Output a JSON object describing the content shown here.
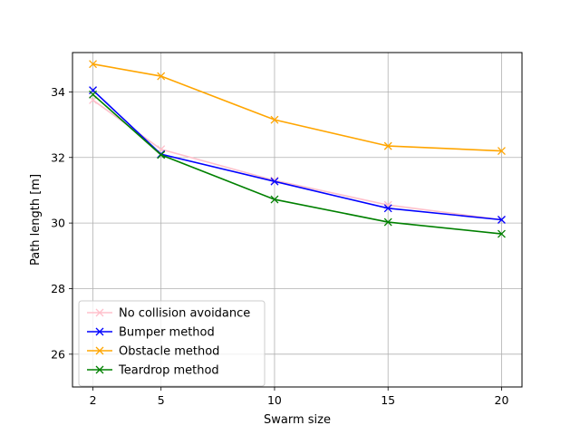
{
  "chart_data": {
    "type": "line",
    "title": "",
    "xlabel": "Swarm size",
    "ylabel": "Path length [m]",
    "x": [
      2,
      5,
      10,
      15,
      20
    ],
    "xticks": [
      2,
      5,
      10,
      15,
      20
    ],
    "yticks": [
      26,
      28,
      30,
      32,
      34
    ],
    "xlim": [
      1.1,
      20.9
    ],
    "ylim": [
      25.0,
      35.2
    ],
    "grid": true,
    "legend_position": "lower-left",
    "marker": "x",
    "series": [
      {
        "name": "No collision avoidance",
        "color": "#ffc0cb",
        "values": [
          33.75,
          32.25,
          31.3,
          30.55,
          30.1
        ]
      },
      {
        "name": "Bumper method",
        "color": "#0000ff",
        "values": [
          34.05,
          32.1,
          31.27,
          30.45,
          30.1
        ]
      },
      {
        "name": "Obstacle method",
        "color": "#ffa500",
        "values": [
          34.85,
          34.48,
          33.15,
          32.35,
          32.2
        ]
      },
      {
        "name": "Teardrop method",
        "color": "#008000",
        "values": [
          33.92,
          32.08,
          30.72,
          30.03,
          29.67
        ]
      }
    ]
  }
}
